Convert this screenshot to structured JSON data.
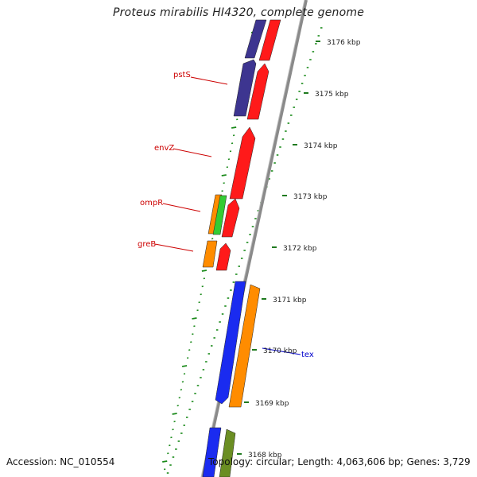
{
  "title": "Proteus mirabilis HI4320, complete genome",
  "footer": {
    "accession": "Accession: NC_010554",
    "summary": "Topology: circular; Length: 4,063,606 bp; Genes: 3,729"
  },
  "colors": {
    "backbone": "#8a8a8a",
    "tick": "#1f7a1f",
    "scale_dots": "#1a8a1a",
    "label_red": "#cc0000",
    "label_blue": "#0000cc",
    "gene_red": "#ff1a1a",
    "gene_purple": "#3d3590",
    "gene_blue": "#1a2bf0",
    "gene_orange": "#ff8c00",
    "gene_green": "#33cc33",
    "gene_olive": "#6b8e23"
  },
  "scale_labels": [
    "3176 kbp",
    "3175 kbp",
    "3174 kbp",
    "3173 kbp",
    "3172 kbp",
    "3171 kbp",
    "3170 kbp",
    "3169 kbp",
    "3168 kbp"
  ],
  "gene_labels": [
    {
      "name": "pstS",
      "color": "red"
    },
    {
      "name": "envZ",
      "color": "red"
    },
    {
      "name": "ompR",
      "color": "red"
    },
    {
      "name": "greB",
      "color": "red"
    },
    {
      "name": "tex",
      "color": "blue"
    }
  ]
}
